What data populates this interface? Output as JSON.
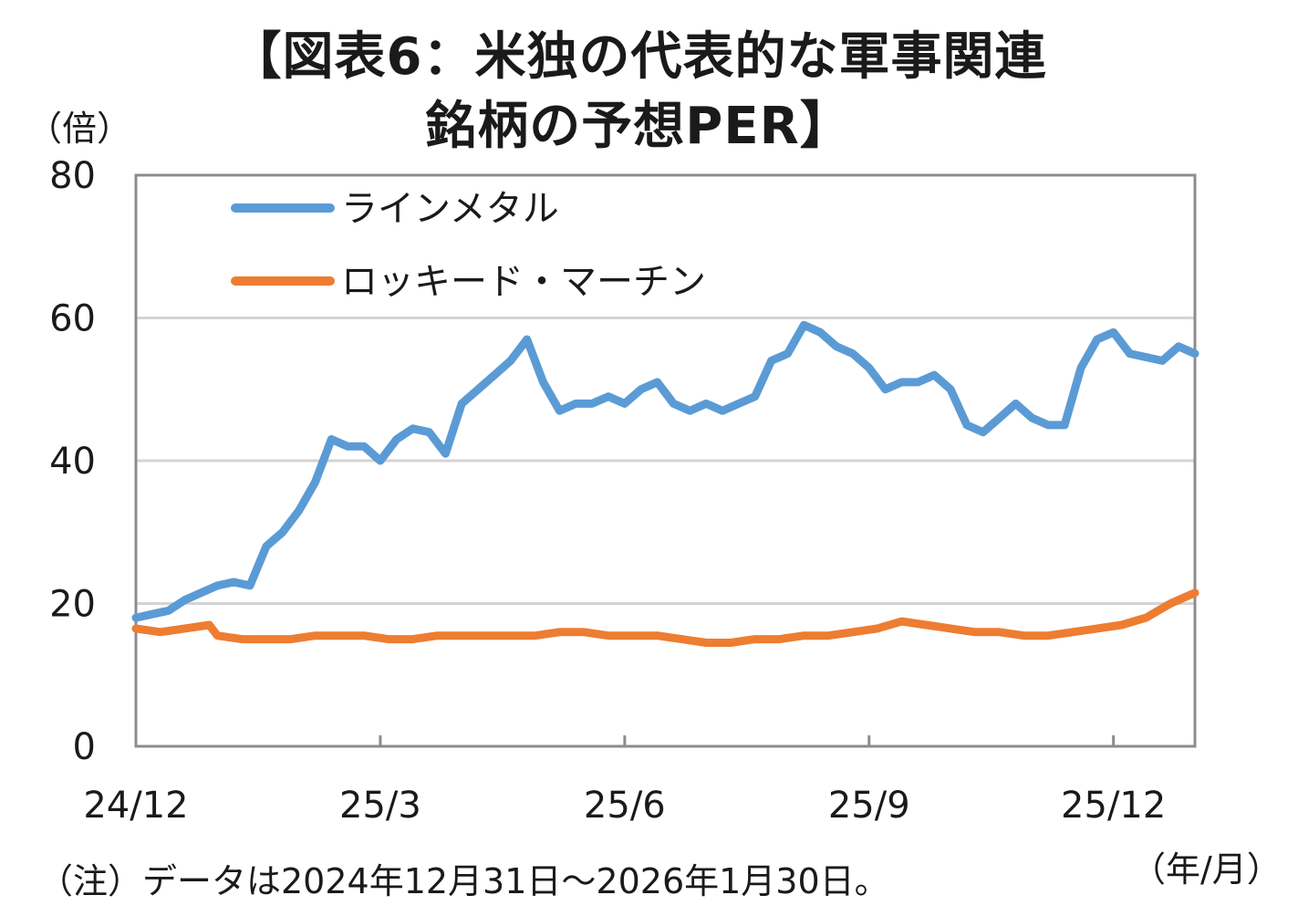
{
  "chart_data": {
    "type": "line",
    "title_line1": "【図表6：米独の代表的な軍事関連",
    "title_line2": "銘柄の予想PER】",
    "ylabel": "（倍）",
    "xunit": "（年/月）",
    "note": "（注）データは2024年12月31日～2026年1月30日。",
    "ylim": [
      0,
      80
    ],
    "yticks": [
      "0",
      "20",
      "40",
      "60",
      "80"
    ],
    "gridlines": [
      20,
      40,
      60
    ],
    "xlim": [
      0,
      13
    ],
    "xticks": [
      {
        "pos": 0,
        "label": "24/12"
      },
      {
        "pos": 3,
        "label": "25/3"
      },
      {
        "pos": 6,
        "label": "25/6"
      },
      {
        "pos": 9,
        "label": "25/9"
      },
      {
        "pos": 12,
        "label": "25/12"
      }
    ],
    "legend": [
      "ラインメタル",
      "ロッキード・マーチン"
    ],
    "series": [
      {
        "name": "ラインメタル",
        "color": "#5B9BD5",
        "x": [
          0,
          0.2,
          0.4,
          0.6,
          0.8,
          1.0,
          1.2,
          1.4,
          1.6,
          1.8,
          2.0,
          2.2,
          2.4,
          2.6,
          2.8,
          3.0,
          3.2,
          3.4,
          3.6,
          3.8,
          4.0,
          4.2,
          4.4,
          4.6,
          4.8,
          5.0,
          5.2,
          5.4,
          5.6,
          5.8,
          6.0,
          6.2,
          6.4,
          6.6,
          6.8,
          7.0,
          7.2,
          7.4,
          7.6,
          7.8,
          8.0,
          8.2,
          8.4,
          8.6,
          8.8,
          9.0,
          9.2,
          9.4,
          9.6,
          9.8,
          10.0,
          10.2,
          10.4,
          10.6,
          10.8,
          11.0,
          11.2,
          11.4,
          11.6,
          11.8,
          12.0,
          12.2,
          12.4,
          12.6,
          12.8,
          13.0
        ],
        "values": [
          18,
          18.5,
          19,
          20.5,
          21.5,
          22.5,
          23,
          22.5,
          28,
          30,
          33,
          37,
          43,
          42,
          42,
          40,
          43,
          44.5,
          44,
          41,
          48,
          50,
          52,
          54,
          57,
          51,
          47,
          48,
          48,
          49,
          48,
          50,
          51,
          48,
          47,
          48,
          47,
          48,
          49,
          54,
          55,
          59,
          58,
          56,
          55,
          53,
          50,
          51,
          51,
          52,
          50,
          45,
          44,
          46,
          48,
          46,
          45,
          45,
          53,
          57,
          58,
          55,
          54.5,
          54,
          56,
          55
        ]
      },
      {
        "name": "ロッキード・マーチン",
        "color": "#ED7D31",
        "x": [
          0,
          0.3,
          0.6,
          0.9,
          1.0,
          1.3,
          1.6,
          1.9,
          2.2,
          2.5,
          2.8,
          3.1,
          3.4,
          3.7,
          4.0,
          4.3,
          4.6,
          4.9,
          5.2,
          5.5,
          5.8,
          6.1,
          6.4,
          6.7,
          7.0,
          7.3,
          7.6,
          7.9,
          8.2,
          8.5,
          8.8,
          9.1,
          9.4,
          9.7,
          10.0,
          10.3,
          10.6,
          10.9,
          11.2,
          11.5,
          11.8,
          12.1,
          12.4,
          12.7,
          13.0
        ],
        "values": [
          16.5,
          16,
          16.5,
          17,
          15.5,
          15,
          15,
          15,
          15.5,
          15.5,
          15.5,
          15,
          15,
          15.5,
          15.5,
          15.5,
          15.5,
          15.5,
          16,
          16,
          15.5,
          15.5,
          15.5,
          15,
          14.5,
          14.5,
          15,
          15,
          15.5,
          15.5,
          16,
          16.5,
          17.5,
          17,
          16.5,
          16,
          16,
          15.5,
          15.5,
          16,
          16.5,
          17,
          18,
          20,
          21.5
        ]
      }
    ]
  }
}
